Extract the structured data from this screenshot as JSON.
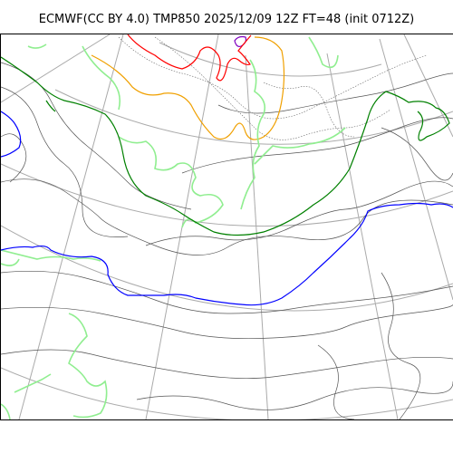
{
  "title": "ECMWF(CC BY 4.0) TMP850 2025/12/09 12Z FT=48 (init 0712Z)",
  "map": {
    "field": "TMP850",
    "contour_colors": {
      "background_isotherms": "#555555",
      "fine_isotherms": "#666666",
      "violet": "#8000c0",
      "red": "#ff0000",
      "orange": "#f0a000",
      "light_green": "#90ee90",
      "green": "#008000",
      "blue": "#0000ff",
      "graticule": "#aaaaaa"
    }
  }
}
